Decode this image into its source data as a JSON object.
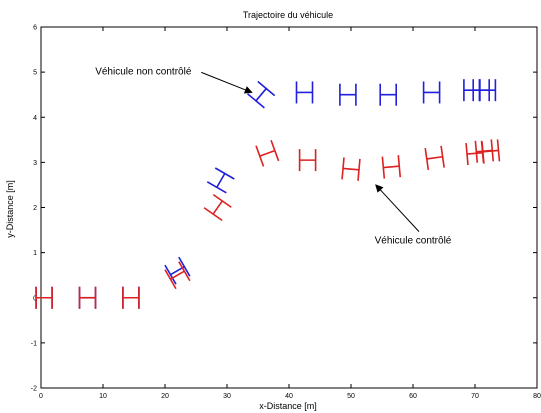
{
  "chart_data": {
    "type": "scatter",
    "title": "Trajectoire du véhicule",
    "xlabel": "x-Distance [m]",
    "ylabel": "y-Distance [m]",
    "xlim": [
      0,
      80
    ],
    "ylim": [
      -2,
      6
    ],
    "xticks": [
      0,
      10,
      20,
      30,
      40,
      50,
      60,
      70,
      80
    ],
    "yticks": [
      -2,
      -1,
      0,
      1,
      2,
      3,
      4,
      5,
      6
    ],
    "grid": false,
    "marker": "vehicle-H-symbol",
    "series": [
      {
        "color": "#2020dd",
        "points": [
          {
            "x": 0.5,
            "y": 0.0,
            "angle": 0
          },
          {
            "x": 7.5,
            "y": 0.0,
            "angle": 0
          },
          {
            "x": 14.5,
            "y": 0.0,
            "angle": 0
          },
          {
            "x": 22.0,
            "y": 0.6,
            "angle": 30
          },
          {
            "x": 29.0,
            "y": 2.6,
            "angle": 60
          },
          {
            "x": 35.5,
            "y": 4.5,
            "angle": 50
          },
          {
            "x": 42.5,
            "y": 4.55,
            "angle": 0
          },
          {
            "x": 49.5,
            "y": 4.5,
            "angle": 0
          },
          {
            "x": 56.0,
            "y": 4.5,
            "angle": 0
          },
          {
            "x": 63.0,
            "y": 4.55,
            "angle": 0
          },
          {
            "x": 69.5,
            "y": 4.6,
            "angle": 0
          },
          {
            "x": 71.0,
            "y": 4.6,
            "angle": 0
          },
          {
            "x": 72.0,
            "y": 4.6,
            "angle": 0
          }
        ]
      },
      {
        "color": "#dd2020",
        "points": [
          {
            "x": 0.5,
            "y": 0.0,
            "angle": 0
          },
          {
            "x": 7.5,
            "y": 0.0,
            "angle": 0
          },
          {
            "x": 14.5,
            "y": 0.0,
            "angle": 0
          },
          {
            "x": 22.0,
            "y": 0.5,
            "angle": 30
          },
          {
            "x": 28.5,
            "y": 2.0,
            "angle": 55
          },
          {
            "x": 36.5,
            "y": 3.2,
            "angle": 20
          },
          {
            "x": 43.0,
            "y": 3.05,
            "angle": 0
          },
          {
            "x": 50.0,
            "y": 2.85,
            "angle": -5
          },
          {
            "x": 56.5,
            "y": 2.9,
            "angle": 5
          },
          {
            "x": 63.5,
            "y": 3.1,
            "angle": 8
          },
          {
            "x": 70.0,
            "y": 3.2,
            "angle": 5
          },
          {
            "x": 71.5,
            "y": 3.25,
            "angle": 5
          },
          {
            "x": 72.5,
            "y": 3.25,
            "angle": 5
          }
        ]
      }
    ],
    "annotations": [
      {
        "text": "Véhicule non contrôlé",
        "x": 16.5,
        "y": 4.95,
        "arrow_to": [
          34.0,
          4.55
        ],
        "anchor": "middle"
      },
      {
        "text": "Véhicule contrôlé",
        "x": 60.0,
        "y": 1.2,
        "arrow_to": [
          54.0,
          2.5
        ],
        "anchor": "middle"
      }
    ]
  }
}
